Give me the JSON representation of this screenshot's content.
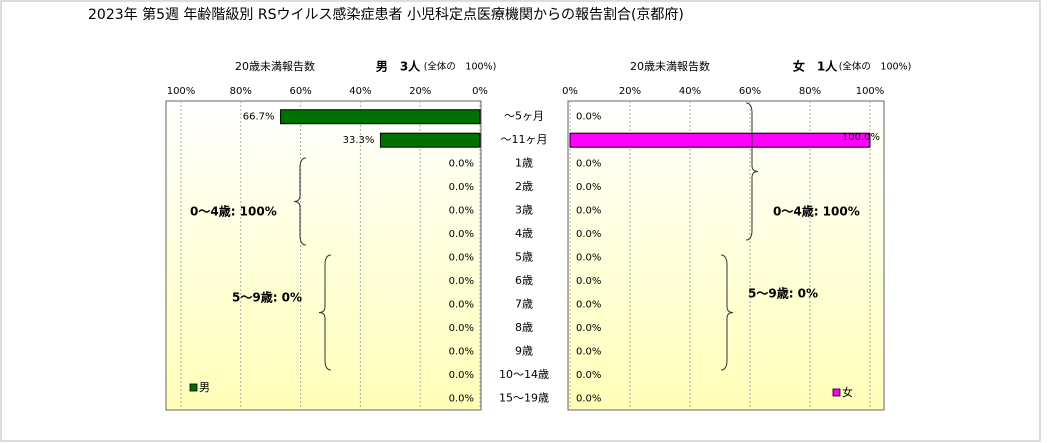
{
  "title": "2023年 第5週 年齢階級別 RSウイルス感染症患者 小児科定点医療機関からの報告割合(京都府)",
  "chart_data": [
    {
      "type": "bar",
      "orientation": "horizontal",
      "subtitle": "20歳未満報告数",
      "total_label": "男　3人",
      "share_label": "(全体の　100%)",
      "categories": [
        "～5ヶ月",
        "～11ヶ月",
        "1歳",
        "2歳",
        "3歳",
        "4歳",
        "5歳",
        "6歳",
        "7歳",
        "8歳",
        "9歳",
        "10～14歳",
        "15～19歳"
      ],
      "series": [
        {
          "name": "男",
          "color": "#007000",
          "values": [
            66.7,
            33.3,
            0,
            0,
            0,
            0,
            0,
            0,
            0,
            0,
            0,
            0,
            0
          ],
          "value_labels": [
            "66.7%",
            "33.3%",
            "0.0%",
            "0.0%",
            "0.0%",
            "0.0%",
            "0.0%",
            "0.0%",
            "0.0%",
            "0.0%",
            "0.0%",
            "0.0%",
            "0.0%"
          ]
        }
      ],
      "xlim": [
        100,
        0
      ],
      "xticks": [
        {
          "value": 100,
          "label": "100%"
        },
        {
          "value": 80,
          "label": "80%"
        },
        {
          "value": 60,
          "label": "60%"
        },
        {
          "value": 40,
          "label": "40%"
        },
        {
          "value": 20,
          "label": "20%"
        },
        {
          "value": 0,
          "label": "0%"
        }
      ],
      "grid": true,
      "annotations": [
        "0～4歳: 100%",
        "5～9歳: 0%"
      ]
    },
    {
      "type": "bar",
      "orientation": "horizontal",
      "subtitle": "20歳未満報告数",
      "total_label": "女　1人",
      "share_label": "(全体の　100%)",
      "series": [
        {
          "name": "女",
          "color": "#ff00ff",
          "values": [
            0,
            100,
            0,
            0,
            0,
            0,
            0,
            0,
            0,
            0,
            0,
            0,
            0
          ],
          "value_labels": [
            "0.0%",
            "100.0%",
            "0.0%",
            "0.0%",
            "0.0%",
            "0.0%",
            "0.0%",
            "0.0%",
            "0.0%",
            "0.0%",
            "0.0%",
            "0.0%",
            "0.0%"
          ]
        }
      ],
      "xlim": [
        0,
        100
      ],
      "xticks": [
        {
          "value": 0,
          "label": "0%"
        },
        {
          "value": 20,
          "label": "20%"
        },
        {
          "value": 40,
          "label": "40%"
        },
        {
          "value": 60,
          "label": "60%"
        },
        {
          "value": 80,
          "label": "80%"
        },
        {
          "value": 100,
          "label": "100%"
        }
      ],
      "grid": true,
      "annotations": [
        "0～4歳: 100%",
        "5～9歳: 0%"
      ]
    }
  ]
}
